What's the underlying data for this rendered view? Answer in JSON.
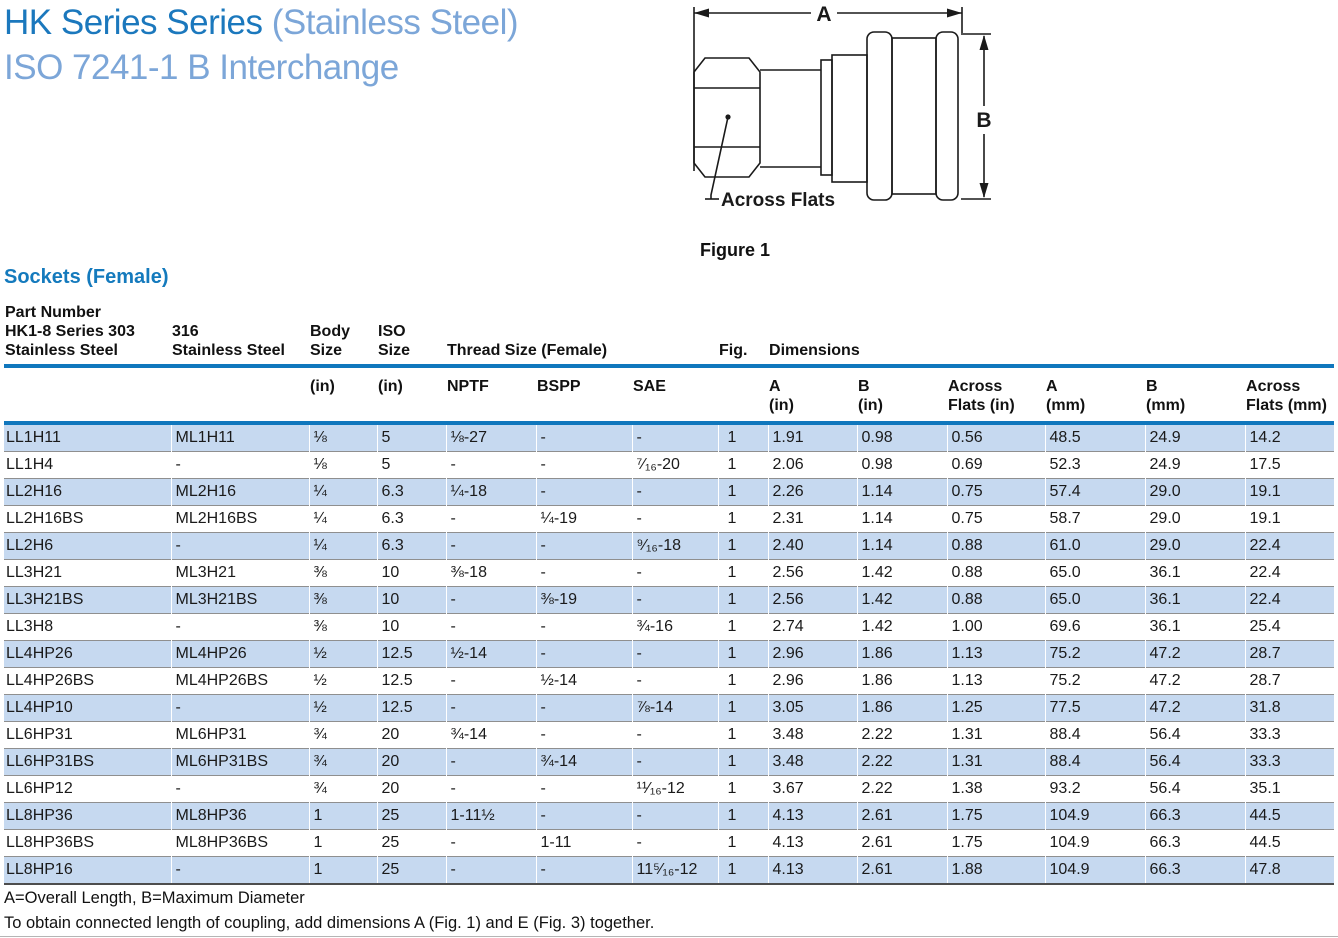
{
  "title": {
    "line1_dark": "HK Series Series",
    "line1_light": " (Stainless Steel)",
    "line2_light": "ISO 7241-1 B Interchange"
  },
  "figure": {
    "caption": "Figure 1",
    "dim_a_label": "A",
    "dim_b_label": "B",
    "across_flats_label": "Across Flats"
  },
  "section_heading": "Sockets (Female)",
  "table": {
    "group_header": {
      "part_number_lines": [
        "Part Number",
        "HK1-8 Series 303",
        "Stainless Steel"
      ],
      "part_316_lines": [
        "316",
        "Stainless Steel"
      ],
      "body_size_lines": [
        "Body",
        "Size"
      ],
      "iso_size_lines": [
        "ISO",
        "Size"
      ],
      "thread_size_label": "Thread Size (Female)",
      "fig_label": "Fig.",
      "dimensions_label": "Dimensions"
    },
    "sub_header": {
      "body_unit": "(in)",
      "iso_unit": "(in)",
      "nptf": "NPTF",
      "bspp": "BSPP",
      "sae": "SAE",
      "a_in": [
        "A",
        "(in)"
      ],
      "b_in": [
        "B",
        "(in)"
      ],
      "af_in": [
        "Across",
        "Flats (in)"
      ],
      "a_mm": [
        "A",
        "(mm)"
      ],
      "b_mm": [
        "B",
        "(mm)"
      ],
      "af_mm": [
        "Across",
        "Flats (mm)"
      ]
    },
    "column_keys": [
      "part-303",
      "part-316",
      "body-size-in",
      "iso-size-in",
      "nptf",
      "bspp",
      "sae",
      "fig",
      "a-in",
      "b-in",
      "across-flats-in",
      "a-mm",
      "b-mm",
      "across-flats-mm"
    ],
    "rows": [
      [
        "LL1H11",
        "ML1H11",
        "⅛",
        "5",
        "⅛-27",
        "-",
        "-",
        "1",
        "1.91",
        "0.98",
        "0.56",
        "48.5",
        "24.9",
        "14.2"
      ],
      [
        "LL1H4",
        "-",
        "⅛",
        "5",
        "-",
        "-",
        "⁷⁄₁₆-20",
        "1",
        "2.06",
        "0.98",
        "0.69",
        "52.3",
        "24.9",
        "17.5"
      ],
      [
        "LL2H16",
        "ML2H16",
        "¼",
        "6.3",
        "¼-18",
        "-",
        "-",
        "1",
        "2.26",
        "1.14",
        "0.75",
        "57.4",
        "29.0",
        "19.1"
      ],
      [
        "LL2H16BS",
        "ML2H16BS",
        "¼",
        "6.3",
        "-",
        "¼-19",
        "-",
        "1",
        "2.31",
        "1.14",
        "0.75",
        "58.7",
        "29.0",
        "19.1"
      ],
      [
        "LL2H6",
        "-",
        "¼",
        "6.3",
        "-",
        "-",
        "⁹⁄₁₆-18",
        "1",
        "2.40",
        "1.14",
        "0.88",
        "61.0",
        "29.0",
        "22.4"
      ],
      [
        "LL3H21",
        "ML3H21",
        "⅜",
        "10",
        "⅜-18",
        "-",
        "-",
        "1",
        "2.56",
        "1.42",
        "0.88",
        "65.0",
        "36.1",
        "22.4"
      ],
      [
        "LL3H21BS",
        "ML3H21BS",
        "⅜",
        "10",
        "-",
        "⅜-19",
        "-",
        "1",
        "2.56",
        "1.42",
        "0.88",
        "65.0",
        "36.1",
        "22.4"
      ],
      [
        "LL3H8",
        "-",
        "⅜",
        "10",
        "-",
        "-",
        "¾-16",
        "1",
        "2.74",
        "1.42",
        "1.00",
        "69.6",
        "36.1",
        "25.4"
      ],
      [
        "LL4HP26",
        "ML4HP26",
        "½",
        "12.5",
        "½-14",
        "-",
        "-",
        "1",
        "2.96",
        "1.86",
        "1.13",
        "75.2",
        "47.2",
        "28.7"
      ],
      [
        "LL4HP26BS",
        "ML4HP26BS",
        "½",
        "12.5",
        "-",
        "½-14",
        "-",
        "1",
        "2.96",
        "1.86",
        "1.13",
        "75.2",
        "47.2",
        "28.7"
      ],
      [
        "LL4HP10",
        "-",
        "½",
        "12.5",
        "-",
        "-",
        "⅞-14",
        "1",
        "3.05",
        "1.86",
        "1.25",
        "77.5",
        "47.2",
        "31.8"
      ],
      [
        "LL6HP31",
        "ML6HP31",
        "¾",
        "20",
        "¾-14",
        "-",
        "-",
        "1",
        "3.48",
        "2.22",
        "1.31",
        "88.4",
        "56.4",
        "33.3"
      ],
      [
        "LL6HP31BS",
        "ML6HP31BS",
        "¾",
        "20",
        "-",
        "¾-14",
        "-",
        "1",
        "3.48",
        "2.22",
        "1.31",
        "88.4",
        "56.4",
        "33.3"
      ],
      [
        "LL6HP12",
        "-",
        "¾",
        "20",
        "-",
        "-",
        "¹¹⁄₁₆-12",
        "1",
        "3.67",
        "2.22",
        "1.38",
        "93.2",
        "56.4",
        "35.1"
      ],
      [
        "LL8HP36",
        "ML8HP36",
        "1",
        "25",
        "1-11½",
        "-",
        "-",
        "1",
        "4.13",
        "2.61",
        "1.75",
        "104.9",
        "66.3",
        "44.5"
      ],
      [
        "LL8HP36BS",
        "ML8HP36BS",
        "1",
        "25",
        "-",
        "1-11",
        "-",
        "1",
        "4.13",
        "2.61",
        "1.75",
        "104.9",
        "66.3",
        "44.5"
      ],
      [
        "LL8HP16",
        "-",
        "1",
        "25",
        "-",
        "-",
        "11⁵⁄₁₆-12",
        "1",
        "4.13",
        "2.61",
        "1.88",
        "104.9",
        "66.3",
        "47.8"
      ]
    ]
  },
  "footnotes": {
    "line1": "A=Overall Length, B=Maximum Diameter",
    "line2": "To obtain connected length of coupling, add dimensions A (Fig. 1) and E (Fig. 3)  together."
  },
  "colors": {
    "title_dark_blue": "#1b78bd",
    "title_light_blue": "#7ca6d8",
    "section_heading_blue": "#147abd",
    "table_rule_blue": "#1077bd",
    "row_stripe_blue": "#c6d9f0",
    "row_separator_gray": "#8f8f8f",
    "text_black": "#1a1a1a"
  }
}
